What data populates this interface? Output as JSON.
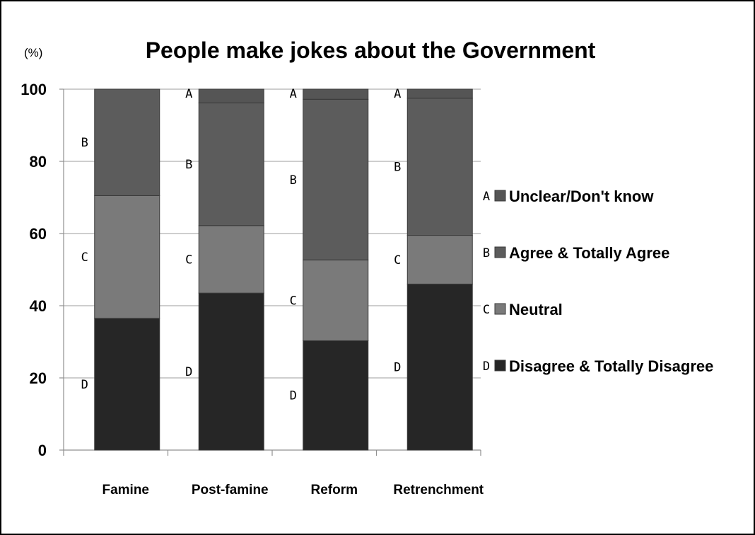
{
  "chart_data": {
    "type": "bar",
    "stacked": true,
    "title": "People make jokes about the Government",
    "unit_label": "(%)",
    "ylim": [
      0,
      100
    ],
    "yticks": [
      0,
      20,
      40,
      60,
      80,
      100
    ],
    "grid": true,
    "legend_position": "right",
    "categories": [
      "Famine",
      "Post-famine",
      "Reform",
      "Retrenchment"
    ],
    "series": [
      {
        "letter": "D",
        "name": "Disagree & Totally Disagree",
        "color": "#262626",
        "values": [
          36.5,
          43.5,
          30.3,
          46
        ]
      },
      {
        "letter": "C",
        "name": "Neutral",
        "color": "#7a7a7a",
        "values": [
          34,
          18.7,
          22.4,
          13.5
        ]
      },
      {
        "letter": "B",
        "name": "Agree & Totally Agree",
        "color": "#5c5c5c",
        "values": [
          29.5,
          34,
          44.5,
          38
        ]
      },
      {
        "letter": "A",
        "name": "Unclear/Don't know",
        "color": "#555555",
        "values": [
          0,
          3.8,
          2.8,
          2.5
        ]
      }
    ],
    "segment_labels": [
      [
        "D",
        "C",
        "B",
        ""
      ],
      [
        "D",
        "C",
        "B",
        "A"
      ],
      [
        "D",
        "C",
        "B",
        "A"
      ],
      [
        "D",
        "C",
        "B",
        "A"
      ]
    ]
  }
}
